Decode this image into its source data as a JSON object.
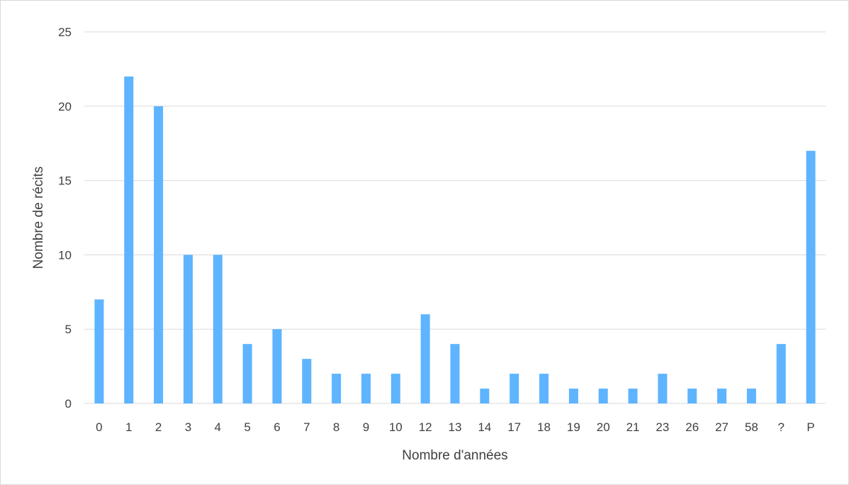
{
  "chart_data": {
    "type": "bar",
    "title": "",
    "xlabel": "Nombre d'années",
    "ylabel": "Nombre de récits",
    "categories": [
      "0",
      "1",
      "2",
      "3",
      "4",
      "5",
      "6",
      "7",
      "8",
      "9",
      "10",
      "12",
      "13",
      "14",
      "17",
      "18",
      "19",
      "20",
      "21",
      "23",
      "26",
      "27",
      "58",
      "?",
      "P"
    ],
    "values": [
      7,
      22,
      20,
      10,
      10,
      4,
      5,
      3,
      2,
      2,
      2,
      6,
      4,
      1,
      2,
      2,
      1,
      1,
      1,
      2,
      1,
      1,
      1,
      4,
      17
    ],
    "ylim": [
      0,
      25
    ],
    "yticks": [
      0,
      5,
      10,
      15,
      20,
      25
    ],
    "grid": true,
    "legend": "none",
    "bar_color": "#5eb4ff",
    "grid_color": "#d9d9d9",
    "text_color": "#404040"
  }
}
